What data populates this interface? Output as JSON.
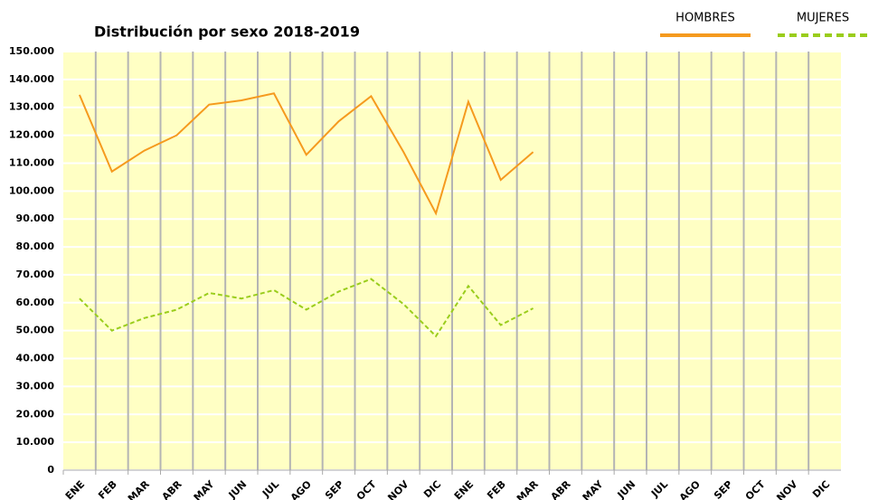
{
  "chart_data": {
    "type": "line",
    "title": "Distribución por sexo 2018-2019",
    "categories": [
      "ENE",
      "FEB",
      "MAR",
      "ABR",
      "MAY",
      "JUN",
      "JUL",
      "AGO",
      "SEP",
      "OCT",
      "NOV",
      "DIC",
      "ENE",
      "FEB",
      "MAR",
      "ABR",
      "MAY",
      "JUN",
      "JUL",
      "AGO",
      "SEP",
      "OCT",
      "NOV",
      "DIC"
    ],
    "series": [
      {
        "name": "HOMBRES",
        "color": "#f59a1e",
        "line_style": "solid",
        "values": [
          134500,
          107000,
          114500,
          120000,
          131000,
          132500,
          135000,
          113000,
          125000,
          134000,
          114000,
          92000,
          132000,
          104000,
          114000,
          null,
          null,
          null,
          null,
          null,
          null,
          null,
          null,
          null
        ]
      },
      {
        "name": "MUJERES",
        "color": "#9acd1c",
        "line_style": "dashed",
        "values": [
          61500,
          50000,
          54500,
          57500,
          63500,
          61500,
          64500,
          57500,
          64000,
          68500,
          59500,
          48000,
          66000,
          52000,
          58000,
          null,
          null,
          null,
          null,
          null,
          null,
          null,
          null,
          null
        ]
      }
    ],
    "ylim": [
      0,
      150000
    ],
    "yticks": [
      0,
      {
        "value": 10000,
        "label": "10.000"
      },
      {
        "value": 20000,
        "label": "20.000"
      },
      {
        "value": 30000,
        "label": "30.000"
      },
      {
        "value": 40000,
        "label": "40.000"
      },
      {
        "value": 50000,
        "label": "50.000"
      },
      {
        "value": 60000,
        "label": "60.000"
      },
      {
        "value": 70000,
        "label": "70.000"
      },
      {
        "value": 80000,
        "label": "80.000"
      },
      {
        "value": 90000,
        "label": "90.000"
      },
      {
        "value": 100000,
        "label": "100.000"
      },
      {
        "value": 110000,
        "label": "110.000"
      },
      {
        "value": 120000,
        "label": "120.000"
      },
      {
        "value": 130000,
        "label": "130.000"
      },
      {
        "value": 140000,
        "label": "140.000"
      },
      {
        "value": 150000,
        "label": "150.000"
      }
    ],
    "grid": true,
    "legend": "top-right",
    "background": "#ffffc4"
  }
}
